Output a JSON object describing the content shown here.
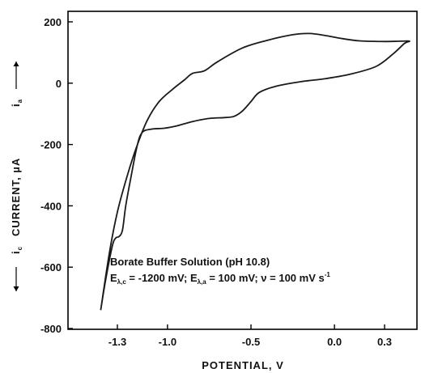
{
  "chart_data": {
    "type": "line",
    "title": "",
    "xlabel": "POTENTIAL, V",
    "ylabel": "CURRENT, µA",
    "ylabel_prefix": "i",
    "ylabel_prefix_sub": "c",
    "ylabel_suffix": "i",
    "ylabel_suffix_sub": "a",
    "xlim": [
      -1.45,
      0.45
    ],
    "ylim": [
      -800,
      220
    ],
    "x_ticks": [
      {
        "value": -1.3,
        "label": "-1.3"
      },
      {
        "value": -1.0,
        "label": "-1.0"
      },
      {
        "value": -0.5,
        "label": "-0.5"
      },
      {
        "value": 0.0,
        "label": "0.0"
      },
      {
        "value": 0.3,
        "label": "0.3"
      }
    ],
    "y_ticks": [
      {
        "value": 200,
        "label": "200"
      },
      {
        "value": 0,
        "label": "0"
      },
      {
        "value": -200,
        "label": "-200"
      },
      {
        "value": -400,
        "label": "-400"
      },
      {
        "value": -600,
        "label": "-600"
      },
      {
        "value": -800,
        "label": "-800"
      }
    ],
    "grid": false,
    "annotation": {
      "line1": "Borate Buffer Solution (pH 10.8)",
      "line2": {
        "e1": "E",
        "e1_sub": "λ,c",
        "e1_val": " = -1200 mV;  ",
        "e2": "E",
        "e2_sub": "λ,a",
        "e2_val": " = 100 mV;  ν = 100 mV s",
        "exp": "-1"
      }
    },
    "series": [
      {
        "color": "#1a1a1a",
        "points": [
          [
            -1.4,
            -740
          ],
          [
            -1.37,
            -640
          ],
          [
            -1.33,
            -530
          ],
          [
            -1.31,
            -505
          ],
          [
            -1.29,
            -500
          ],
          [
            -1.27,
            -480
          ],
          [
            -1.25,
            -400
          ],
          [
            -1.22,
            -310
          ],
          [
            -1.18,
            -200
          ],
          [
            -1.15,
            -160
          ],
          [
            -1.1,
            -150
          ],
          [
            -1.02,
            -147
          ],
          [
            -0.95,
            -140
          ],
          [
            -0.85,
            -125
          ],
          [
            -0.75,
            -115
          ],
          [
            -0.65,
            -112
          ],
          [
            -0.6,
            -108
          ],
          [
            -0.55,
            -90
          ],
          [
            -0.5,
            -60
          ],
          [
            -0.45,
            -30
          ],
          [
            -0.35,
            -10
          ],
          [
            -0.2,
            5
          ],
          [
            -0.05,
            15
          ],
          [
            0.1,
            30
          ],
          [
            0.25,
            55
          ],
          [
            0.35,
            95
          ],
          [
            0.42,
            130
          ],
          [
            0.45,
            137
          ],
          [
            0.4,
            137
          ],
          [
            0.3,
            136
          ],
          [
            0.15,
            138
          ],
          [
            0.05,
            145
          ],
          [
            -0.05,
            155
          ],
          [
            -0.15,
            162
          ],
          [
            -0.25,
            158
          ],
          [
            -0.4,
            140
          ],
          [
            -0.55,
            115
          ],
          [
            -0.7,
            70
          ],
          [
            -0.78,
            40
          ],
          [
            -0.85,
            32
          ],
          [
            -0.9,
            10
          ],
          [
            -0.97,
            -20
          ],
          [
            -1.05,
            -60
          ],
          [
            -1.12,
            -120
          ],
          [
            -1.18,
            -200
          ],
          [
            -1.24,
            -300
          ],
          [
            -1.3,
            -420
          ],
          [
            -1.35,
            -560
          ],
          [
            -1.4,
            -740
          ]
        ]
      }
    ]
  }
}
